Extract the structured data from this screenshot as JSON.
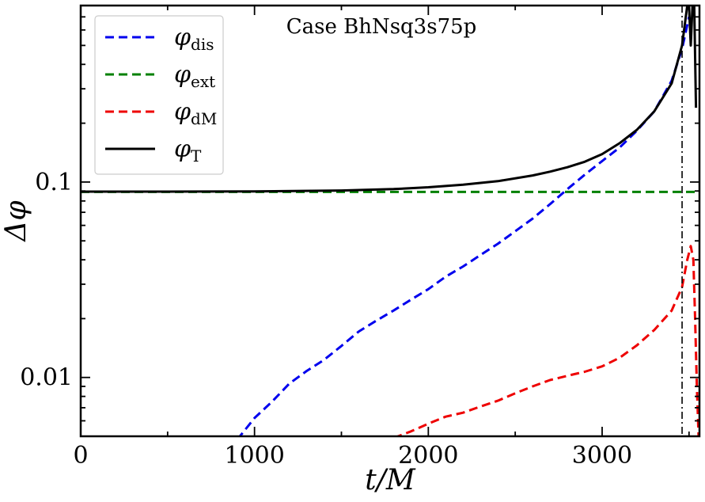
{
  "chart_data": {
    "type": "line",
    "title": "",
    "annotation": "Case BhNsq3s75p",
    "xlabel": "t/M",
    "ylabel": "Δφ",
    "xlim": [
      0,
      3560
    ],
    "ylim": [
      0.005,
      0.8
    ],
    "yscale": "log",
    "grid": false,
    "legend_position": "top-left",
    "x_ticks": [
      0,
      1000,
      2000,
      3000
    ],
    "x_tick_labels": [
      "0",
      "1000",
      "2000",
      "3000"
    ],
    "y_ticks": [
      0.01,
      0.1
    ],
    "y_tick_labels": [
      "0.01",
      "0.1"
    ],
    "vline": {
      "x": 3460,
      "color": "#000000",
      "style": "dashdot"
    },
    "series": [
      {
        "name": "φ_dis",
        "legend_main": "φ",
        "legend_sub": "dis",
        "color": "#0000ee",
        "dash": "dashed",
        "x": [
          900,
          1000,
          1100,
          1200,
          1300,
          1400,
          1500,
          1600,
          1700,
          1800,
          1900,
          2000,
          2100,
          2200,
          2300,
          2400,
          2500,
          2600,
          2700,
          2800,
          2900,
          3000,
          3100,
          3200,
          3300,
          3400,
          3460,
          3500
        ],
        "y": [
          0.0048,
          0.0062,
          0.0075,
          0.0093,
          0.0108,
          0.0123,
          0.0145,
          0.0172,
          0.0195,
          0.022,
          0.025,
          0.0283,
          0.0328,
          0.037,
          0.0423,
          0.0483,
          0.056,
          0.065,
          0.077,
          0.092,
          0.109,
          0.128,
          0.15,
          0.183,
          0.23,
          0.33,
          0.48,
          0.7
        ]
      },
      {
        "name": "φ_ext",
        "legend_main": "φ",
        "legend_sub": "ext",
        "color": "#008000",
        "dash": "dashed",
        "x": [
          0,
          3560
        ],
        "y": [
          0.089,
          0.089
        ]
      },
      {
        "name": "φ_dM",
        "legend_main": "φ",
        "legend_sub": "dM",
        "color": "#ee0000",
        "dash": "dashed",
        "x": [
          1800,
          1900,
          2000,
          2100,
          2200,
          2300,
          2400,
          2500,
          2600,
          2700,
          2800,
          2900,
          3000,
          3100,
          3200,
          3300,
          3400,
          3460,
          3490,
          3510,
          3525,
          3535,
          3545,
          3555
        ],
        "y": [
          0.0049,
          0.0053,
          0.0058,
          0.0063,
          0.0066,
          0.0071,
          0.0076,
          0.0083,
          0.009,
          0.0097,
          0.0102,
          0.0107,
          0.0114,
          0.0126,
          0.0146,
          0.0175,
          0.022,
          0.029,
          0.04,
          0.047,
          0.04,
          0.02,
          0.009,
          0.005
        ]
      },
      {
        "name": "φ_T",
        "legend_main": "φ",
        "legend_sub": "T",
        "color": "#000000",
        "dash": "solid",
        "x": [
          0,
          500,
          1000,
          1500,
          1800,
          2000,
          2200,
          2400,
          2600,
          2700,
          2800,
          2900,
          3000,
          3100,
          3200,
          3300,
          3400,
          3460,
          3490,
          3500,
          3510,
          3520,
          3530,
          3540
        ],
        "y": [
          0.0893,
          0.0893,
          0.0896,
          0.0905,
          0.092,
          0.094,
          0.097,
          0.101,
          0.108,
          0.113,
          0.119,
          0.127,
          0.139,
          0.158,
          0.185,
          0.23,
          0.32,
          0.5,
          0.8,
          0.8,
          0.5,
          0.8,
          0.8,
          0.24
        ]
      }
    ]
  }
}
